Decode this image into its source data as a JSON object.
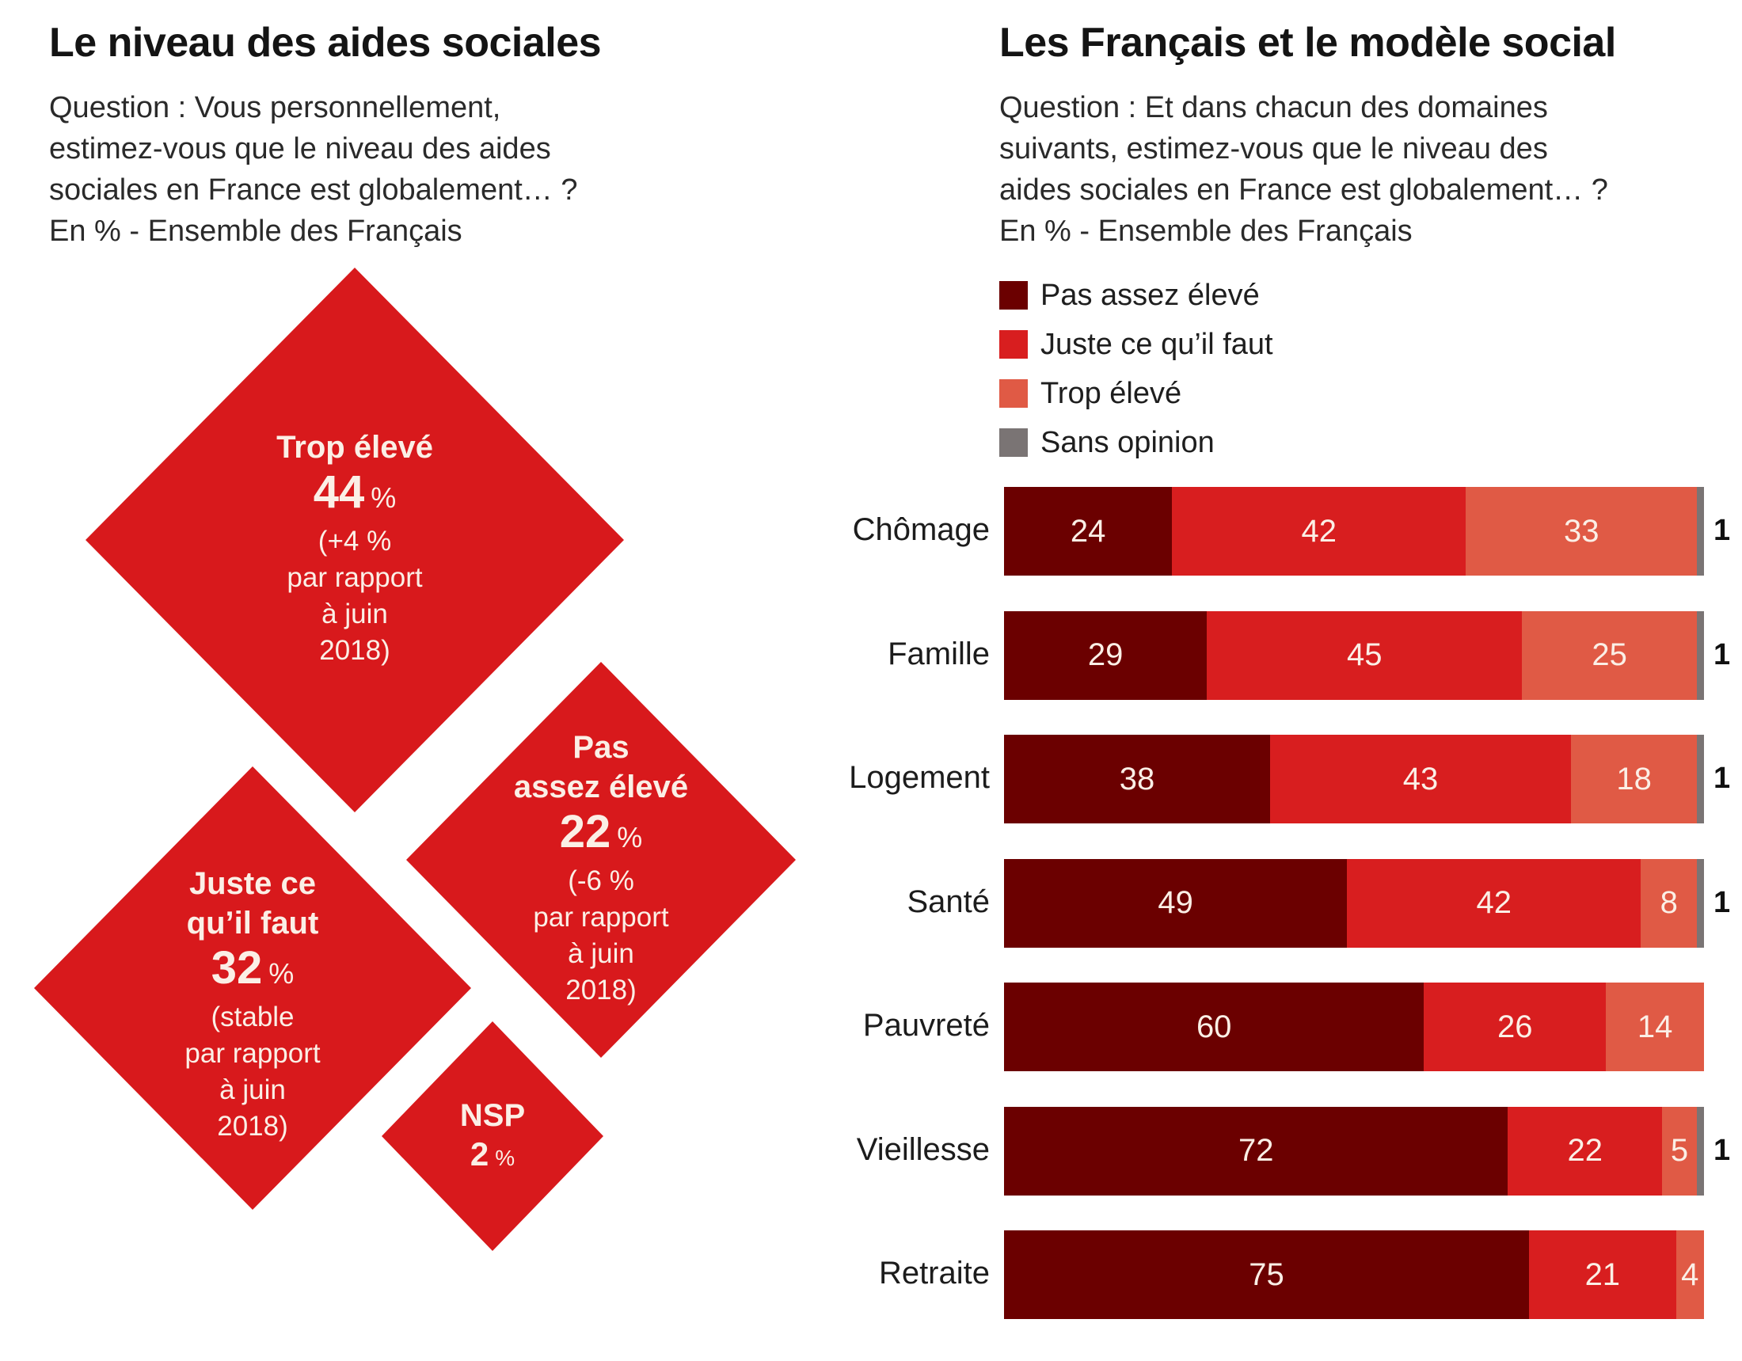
{
  "left": {
    "title": "Le niveau des aides sociales",
    "subtitle_lines": [
      "Question : Vous personnellement,",
      "estimez-vous que le niveau des aides",
      "sociales en France est globalement… ?",
      "En % - Ensemble des Français"
    ],
    "diamonds": [
      {
        "label": "Trop élevé",
        "value": "44",
        "unit": "%",
        "note": "(+4 %\npar rapport\nà juin\n2018)"
      },
      {
        "label": "Juste ce\nqu’il faut",
        "value": "32",
        "unit": "%",
        "note": "(stable\npar rapport\nà juin\n2018)"
      },
      {
        "label": "Pas\nassez élevé",
        "value": "22",
        "unit": "%",
        "note": "(-6 %\npar rapport\nà juin\n2018)"
      },
      {
        "label": "NSP",
        "value": "2",
        "unit": "%",
        "note": ""
      }
    ]
  },
  "right": {
    "title": "Les Français et le modèle social",
    "subtitle_lines": [
      "Question : Et dans chacun des domaines",
      "suivants, estimez-vous que le niveau des",
      "aides sociales en France est globalement… ?",
      "En % - Ensemble des Français"
    ]
  },
  "colors": {
    "pas_assez": "#6b0000",
    "juste": "#d81e1f",
    "trop": "#e05a45",
    "sans_opinion": "#7a7474",
    "diamond": "#d8191c"
  },
  "chart_data": [
    {
      "type": "diamond-proportional",
      "title": "Le niveau des aides sociales",
      "categories": [
        "Trop élevé",
        "Juste ce qu’il faut",
        "Pas assez élevé",
        "NSP"
      ],
      "values": [
        44,
        32,
        22,
        2
      ],
      "changes_vs_june_2018": [
        "+4 %",
        "stable",
        "-6 %",
        null
      ],
      "unit": "%"
    },
    {
      "type": "bar",
      "orientation": "horizontal",
      "stacked": true,
      "title": "Les Français et le modèle social",
      "xlabel": "",
      "ylabel": "",
      "xlim": [
        0,
        100
      ],
      "legend_position": "top-left",
      "categories": [
        "Chômage",
        "Famille",
        "Logement",
        "Santé",
        "Pauvreté",
        "Vieillesse",
        "Retraite"
      ],
      "series": [
        {
          "name": "Pas assez élevé",
          "color": "#6b0000",
          "values": [
            24,
            29,
            38,
            49,
            60,
            72,
            75
          ]
        },
        {
          "name": "Juste ce qu’il faut",
          "color": "#d81e1f",
          "values": [
            42,
            45,
            43,
            42,
            26,
            22,
            21
          ]
        },
        {
          "name": "Trop élevé",
          "color": "#e05a45",
          "values": [
            33,
            25,
            18,
            8,
            14,
            5,
            4
          ]
        },
        {
          "name": "Sans opinion",
          "color": "#7a7474",
          "values": [
            1,
            1,
            1,
            1,
            0,
            1,
            0
          ]
        }
      ],
      "outside_labels": [
        "1",
        "1",
        "1",
        "1",
        "",
        "1",
        ""
      ]
    }
  ]
}
